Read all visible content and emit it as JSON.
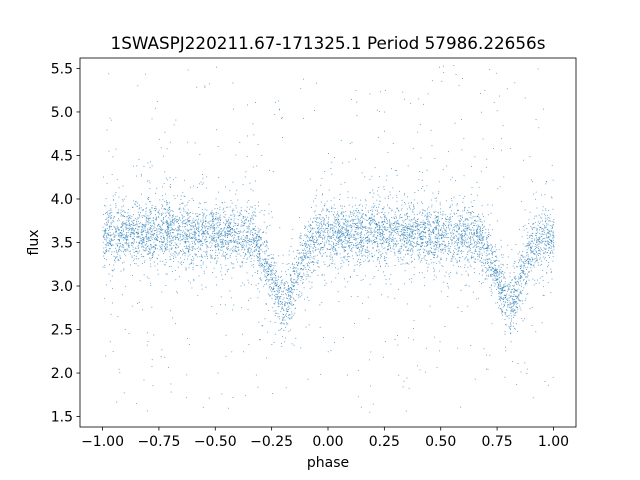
{
  "chart_data": {
    "type": "scatter",
    "title": "1SWASPJ220211.67-171325.1 Period 57986.22656s",
    "xlabel": "phase",
    "ylabel": "flux",
    "xlim": [
      -1.1,
      1.1
    ],
    "ylim": [
      1.38,
      5.62
    ],
    "xticks": [
      -1.0,
      -0.75,
      -0.5,
      -0.25,
      0.0,
      0.25,
      0.5,
      0.75,
      1.0
    ],
    "xtick_labels": [
      "−1.00",
      "−0.75",
      "−0.50",
      "−0.25",
      "0.00",
      "0.25",
      "0.50",
      "0.75",
      "1.00"
    ],
    "yticks": [
      1.5,
      2.0,
      2.5,
      3.0,
      3.5,
      4.0,
      4.5,
      5.0,
      5.5
    ],
    "ytick_labels": [
      "1.5",
      "2.0",
      "2.5",
      "3.0",
      "3.5",
      "4.0",
      "4.5",
      "5.0",
      "5.5"
    ],
    "grid": false,
    "legend": "none",
    "marker_color": "#1f77b4",
    "series": [
      {
        "light_curve_profile": {
          "phase": [
            -1.0,
            -0.75,
            -0.5,
            -0.35,
            -0.3,
            -0.25,
            -0.2,
            -0.15,
            -0.1,
            -0.05,
            0.0,
            0.25,
            0.5,
            0.65,
            0.7,
            0.75,
            0.8,
            0.85,
            0.9,
            0.95,
            1.0
          ],
          "median_flux": [
            3.6,
            3.63,
            3.6,
            3.56,
            3.45,
            3.1,
            2.78,
            3.05,
            3.42,
            3.56,
            3.6,
            3.63,
            3.6,
            3.56,
            3.45,
            3.1,
            2.8,
            3.05,
            3.4,
            3.55,
            3.6
          ]
        },
        "typical_scatter": 0.17,
        "flux_range": [
          1.55,
          5.55
        ]
      }
    ]
  }
}
